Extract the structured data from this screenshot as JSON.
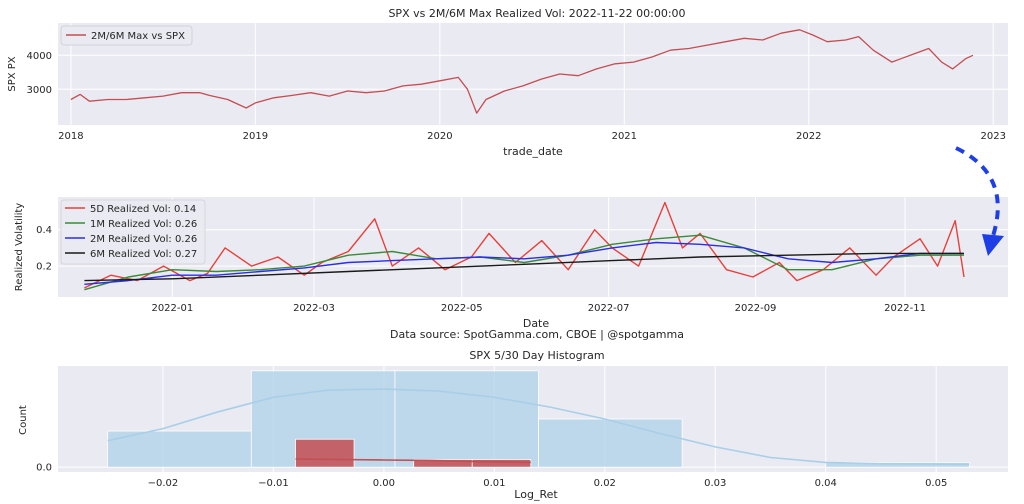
{
  "chart_data": [
    {
      "type": "line",
      "title": "SPX vs 2M/6M Max Realized Vol: 2022-11-22 00:00:00",
      "xlabel": "trade_date",
      "ylabel": "SPX PX",
      "xlim": [
        2017.93,
        2023.08
      ],
      "ylim": [
        1950,
        4950
      ],
      "x_ticks": [
        2018,
        2019,
        2020,
        2021,
        2022,
        2023
      ],
      "x_tick_labels": [
        "2018",
        "2019",
        "2020",
        "2021",
        "2022",
        "2023"
      ],
      "y_ticks": [
        3000,
        4000
      ],
      "y_tick_labels": [
        "3000",
        "4000"
      ],
      "legend": "top-left",
      "series": [
        {
          "name": "2M/6M Max vs SPX",
          "color": "#c44e52",
          "x": [
            2018.0,
            2018.05,
            2018.1,
            2018.2,
            2018.3,
            2018.4,
            2018.5,
            2018.6,
            2018.7,
            2018.75,
            2018.85,
            2018.95,
            2019.0,
            2019.1,
            2019.2,
            2019.3,
            2019.4,
            2019.5,
            2019.6,
            2019.7,
            2019.8,
            2019.9,
            2020.0,
            2020.1,
            2020.15,
            2020.2,
            2020.25,
            2020.35,
            2020.45,
            2020.55,
            2020.65,
            2020.75,
            2020.85,
            2020.95,
            2021.05,
            2021.15,
            2021.25,
            2021.35,
            2021.45,
            2021.55,
            2021.65,
            2021.75,
            2021.85,
            2021.95,
            2022.02,
            2022.1,
            2022.2,
            2022.27,
            2022.35,
            2022.45,
            2022.5,
            2022.6,
            2022.65,
            2022.72,
            2022.78,
            2022.85,
            2022.89
          ],
          "values": [
            2700,
            2850,
            2650,
            2700,
            2700,
            2750,
            2800,
            2900,
            2900,
            2820,
            2700,
            2450,
            2600,
            2750,
            2820,
            2900,
            2800,
            2950,
            2900,
            2950,
            3100,
            3150,
            3250,
            3350,
            3000,
            2300,
            2700,
            2950,
            3100,
            3300,
            3450,
            3400,
            3600,
            3750,
            3800,
            3950,
            4150,
            4200,
            4300,
            4400,
            4500,
            4450,
            4650,
            4750,
            4600,
            4400,
            4450,
            4550,
            4150,
            3800,
            3900,
            4100,
            4200,
            3800,
            3600,
            3900,
            4000
          ]
        }
      ]
    },
    {
      "type": "line",
      "title": "",
      "xlabel": "Date",
      "ylabel": "Realized Volatility",
      "xlim": [
        2021.87,
        2022.95
      ],
      "ylim": [
        0.03,
        0.58
      ],
      "x_ticks": [
        2022.0,
        2022.161,
        2022.329,
        2022.496,
        2022.663,
        2022.833
      ],
      "x_tick_labels": [
        "2022-01",
        "2022-03",
        "2022-05",
        "2022-07",
        "2022-09",
        "2022-11"
      ],
      "y_ticks": [
        0.2,
        0.4
      ],
      "y_tick_labels": [
        "0.2",
        "0.4"
      ],
      "legend": "top-left",
      "annotation": "Data source: SpotGamma.com, CBOE | @spotgamma",
      "series": [
        {
          "name": "5D Realized Vol: 0.14",
          "color": "#e8403a",
          "x": [
            2021.9,
            2021.93,
            2021.96,
            2021.99,
            2022.02,
            2022.04,
            2022.06,
            2022.09,
            2022.12,
            2022.15,
            2022.17,
            2022.2,
            2022.23,
            2022.25,
            2022.28,
            2022.31,
            2022.34,
            2022.36,
            2022.39,
            2022.42,
            2022.45,
            2022.48,
            2022.5,
            2022.53,
            2022.56,
            2022.58,
            2022.6,
            2022.63,
            2022.66,
            2022.69,
            2022.71,
            2022.74,
            2022.77,
            2022.8,
            2022.82,
            2022.85,
            2022.87,
            2022.89,
            2022.9
          ],
          "values": [
            0.08,
            0.15,
            0.12,
            0.2,
            0.12,
            0.16,
            0.3,
            0.2,
            0.25,
            0.15,
            0.22,
            0.28,
            0.46,
            0.2,
            0.3,
            0.18,
            0.25,
            0.38,
            0.22,
            0.34,
            0.18,
            0.4,
            0.3,
            0.2,
            0.55,
            0.3,
            0.38,
            0.18,
            0.14,
            0.22,
            0.12,
            0.18,
            0.3,
            0.15,
            0.25,
            0.35,
            0.2,
            0.45,
            0.14
          ]
        },
        {
          "name": "1M Realized Vol: 0.26",
          "color": "#3a8a38",
          "x": [
            2021.9,
            2021.95,
            2022.0,
            2022.05,
            2022.1,
            2022.15,
            2022.2,
            2022.25,
            2022.3,
            2022.35,
            2022.4,
            2022.45,
            2022.5,
            2022.55,
            2022.6,
            2022.65,
            2022.7,
            2022.75,
            2022.8,
            2022.85,
            2022.9
          ],
          "values": [
            0.07,
            0.14,
            0.18,
            0.17,
            0.18,
            0.2,
            0.26,
            0.28,
            0.24,
            0.25,
            0.22,
            0.26,
            0.32,
            0.35,
            0.37,
            0.3,
            0.18,
            0.18,
            0.24,
            0.26,
            0.26
          ]
        },
        {
          "name": "2M Realized Vol: 0.26",
          "color": "#2a2ee6",
          "x": [
            2021.9,
            2021.95,
            2022.0,
            2022.05,
            2022.1,
            2022.15,
            2022.2,
            2022.25,
            2022.3,
            2022.35,
            2022.4,
            2022.45,
            2022.5,
            2022.55,
            2022.6,
            2022.65,
            2022.7,
            2022.75,
            2022.8,
            2022.85,
            2022.9
          ],
          "values": [
            0.1,
            0.12,
            0.15,
            0.15,
            0.17,
            0.19,
            0.22,
            0.23,
            0.24,
            0.25,
            0.24,
            0.26,
            0.3,
            0.33,
            0.32,
            0.3,
            0.24,
            0.22,
            0.24,
            0.27,
            0.27
          ]
        },
        {
          "name": "6M Realized Vol: 0.27",
          "color": "#1a1a1a",
          "x": [
            2021.9,
            2022.0,
            2022.1,
            2022.2,
            2022.3,
            2022.4,
            2022.5,
            2022.6,
            2022.7,
            2022.8,
            2022.9
          ],
          "values": [
            0.12,
            0.13,
            0.15,
            0.17,
            0.19,
            0.21,
            0.23,
            0.25,
            0.26,
            0.27,
            0.27
          ]
        }
      ]
    },
    {
      "type": "bar",
      "title": "SPX 5/30 Day Histogram",
      "xlabel": "Log_Ret",
      "ylabel": "Count",
      "xlim": [
        -0.0295,
        0.0565
      ],
      "ylim": [
        -0.1,
        2.1
      ],
      "x_ticks": [
        -0.02,
        -0.01,
        0.0,
        0.01,
        0.02,
        0.03,
        0.04,
        0.05
      ],
      "x_tick_labels": [
        "−0.02",
        "−0.01",
        "0.00",
        "0.01",
        "0.02",
        "0.03",
        "0.04",
        "0.05"
      ],
      "y_ticks": [
        0
      ],
      "y_tick_labels": [
        "0.0"
      ],
      "bars_30d": {
        "color": "#a9cfe8",
        "bins": [
          [
            -0.025,
            -0.012
          ],
          [
            -0.012,
            0.001
          ],
          [
            0.001,
            0.014
          ],
          [
            0.014,
            0.027
          ],
          [
            0.027,
            0.04
          ],
          [
            0.04,
            0.053
          ]
        ],
        "values": [
          0.75,
          2.0,
          2.0,
          1.0,
          0.0,
          0.1
        ]
      },
      "bars_5d": {
        "color": "#c44e52",
        "bins": [
          [
            -0.008,
            -0.0027
          ],
          [
            -0.0027,
            0.0027
          ],
          [
            0.0027,
            0.008
          ],
          [
            0.008,
            0.0133
          ]
        ],
        "values": [
          0.58,
          0.0,
          0.16,
          0.16
        ]
      },
      "kde_30d": {
        "x": [
          -0.025,
          -0.02,
          -0.015,
          -0.01,
          -0.005,
          0.0,
          0.005,
          0.01,
          0.015,
          0.02,
          0.025,
          0.03,
          0.035,
          0.04,
          0.045,
          0.053
        ],
        "values": [
          0.55,
          0.8,
          1.15,
          1.45,
          1.6,
          1.62,
          1.58,
          1.45,
          1.25,
          1.0,
          0.7,
          0.42,
          0.2,
          0.1,
          0.07,
          0.06
        ]
      },
      "kde_5d": {
        "x": [
          -0.008,
          -0.004,
          0.0,
          0.004,
          0.008,
          0.0133
        ],
        "values": [
          0.17,
          0.16,
          0.15,
          0.14,
          0.12,
          0.1
        ]
      }
    }
  ]
}
